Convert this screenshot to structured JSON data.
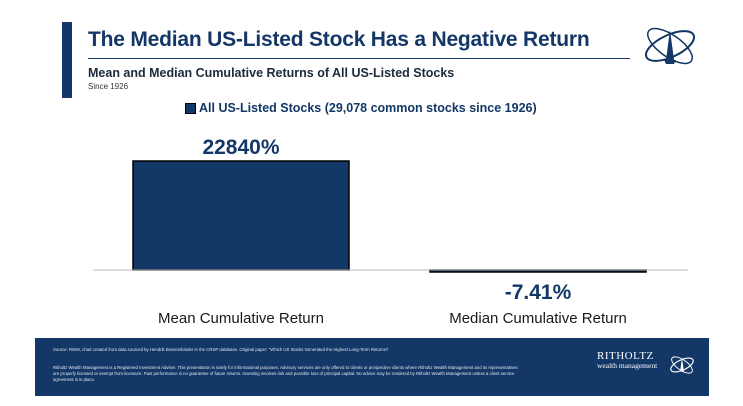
{
  "header": {
    "title": "The Median US-Listed Stock Has a Negative Return",
    "subtitle": "Mean and Median Cumulative Returns of All US-Listed Stocks",
    "since": "Since 1926"
  },
  "colors": {
    "primary": "#133766",
    "text": "#1c2a3a"
  },
  "chart_data": {
    "type": "bar",
    "categories": [
      "Mean Cumulative Return",
      "Median Cumulative Return"
    ],
    "series": [
      {
        "name": "All US-Listed Stocks (29,078 common stocks since 1926)",
        "values": [
          22840,
          -7.41
        ]
      }
    ],
    "data_labels": [
      "22840%",
      "-7.41%"
    ],
    "legend": "top"
  },
  "footer": {
    "source": "Source: RWM, chart created from data sourced by Hendrik Bessembinder in the CRSP database. Original paper: \"Which US Stocks Generated the Highest Long-Term Returns?",
    "disclaimer": "Ritholtz Wealth Management is a Registered Investment Adviser. This presentation is solely for informational purposes. Advisory services are only offered to clients or prospective clients where Ritholtz Wealth Management and its representatives are properly licensed or exempt from licensure. Past performance is no guarantee of future returns. Investing involves risk and possible loss of principal capital. No advice may be rendered by Ritholtz Wealth Management unless a client service agreement is in place.",
    "brand_line1": "RITHOLTZ",
    "brand_line2": "wealth management"
  }
}
